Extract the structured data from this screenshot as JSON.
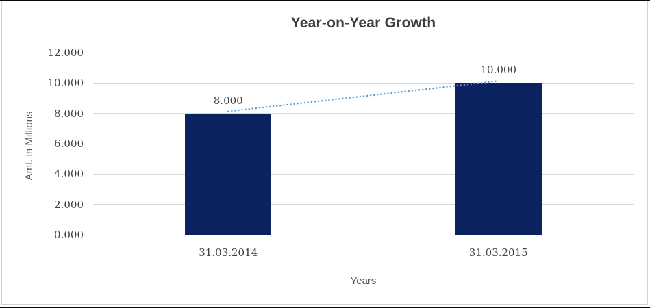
{
  "chart_data": {
    "type": "bar",
    "title": "Year-on-Year Growth",
    "xlabel": "Years",
    "ylabel": "Amt. in Millions",
    "categories": [
      "31.03.2014",
      "31.03.2015"
    ],
    "values": [
      8000,
      10000
    ],
    "value_labels": [
      "8.000",
      "10.000"
    ],
    "y_ticks": [
      {
        "value": 0,
        "label": "0.000"
      },
      {
        "value": 2000,
        "label": "2.000"
      },
      {
        "value": 4000,
        "label": "4.000"
      },
      {
        "value": 6000,
        "label": "6.000"
      },
      {
        "value": 8000,
        "label": "8.000"
      },
      {
        "value": 10000,
        "label": "10.000"
      },
      {
        "value": 12000,
        "label": "12.000"
      }
    ],
    "ylim": [
      0,
      12000
    ],
    "grid": "horizontal",
    "legend": "none",
    "trendline": {
      "style": "dotted",
      "connects": "bar tops",
      "from_value": 8000,
      "to_value": 10000
    },
    "colors": {
      "bar": "#0a2360",
      "trendline": "#5b9bd5",
      "gridline": "#d9d9d9",
      "title_text": "#3f3f3f",
      "tick_text": "#404040",
      "axis_title_text": "#595959",
      "chart_border": "#d2d2d2",
      "background": "#ffffff"
    }
  }
}
